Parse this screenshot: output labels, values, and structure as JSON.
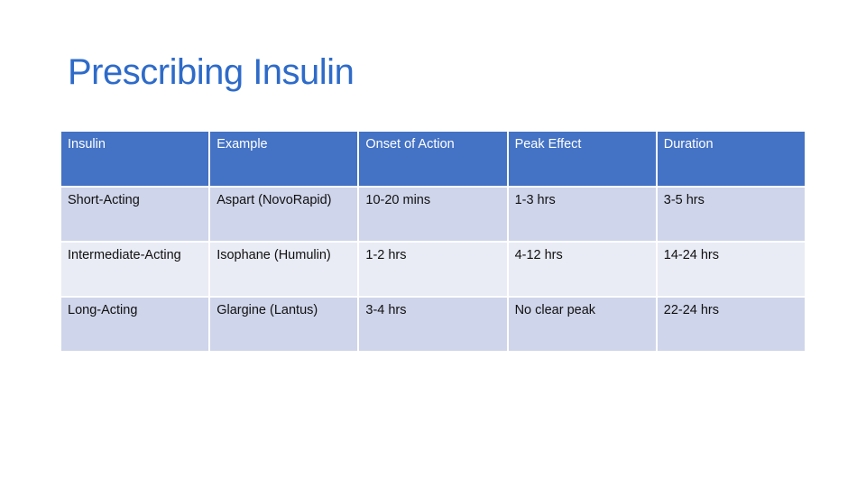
{
  "title": "Prescribing Insulin",
  "table": {
    "headers": [
      "Insulin",
      "Example",
      "Onset of Action",
      "Peak Effect",
      "Duration"
    ],
    "rows": [
      [
        "Short-Acting",
        "Aspart (NovoRapid)",
        "10-20 mins",
        "1-3 hrs",
        "3-5 hrs"
      ],
      [
        "Intermediate-Acting",
        "Isophane (Humulin)",
        "1-2 hrs",
        "4-12 hrs",
        "14-24 hrs"
      ],
      [
        "Long-Acting",
        "Glargine (Lantus)",
        "3-4 hrs",
        "No clear peak",
        "22-24 hrs"
      ]
    ]
  },
  "colors": {
    "title": "#2e6bc9",
    "header_bg": "#4472c4",
    "row_odd_bg": "#cfd5ea",
    "row_even_bg": "#e9ebf5"
  }
}
